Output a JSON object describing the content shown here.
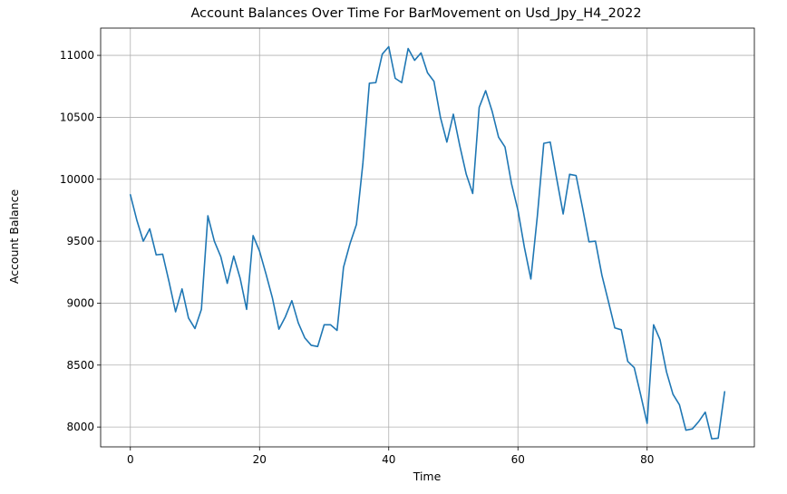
{
  "chart_data": {
    "type": "line",
    "title": "Account Balances Over Time For BarMovement on Usd_Jpy_H4_2022",
    "xlabel": "Time",
    "ylabel": "Account Balance",
    "xlim": [
      -4.6,
      96.6
    ],
    "ylim": [
      7840,
      11220
    ],
    "xticks": [
      0,
      20,
      40,
      60,
      80
    ],
    "yticks": [
      8000,
      8500,
      9000,
      9500,
      10000,
      10500,
      11000
    ],
    "grid": true,
    "line_color": "#1f77b4",
    "series": [
      {
        "x": [
          0,
          1,
          2,
          3,
          4,
          5,
          6,
          7,
          8,
          9,
          10,
          11,
          12,
          13,
          14,
          15,
          16,
          17,
          18,
          19,
          20,
          21,
          22,
          23,
          24,
          25,
          26,
          27,
          28,
          29,
          30,
          31,
          32,
          33,
          34,
          35,
          36,
          37,
          38,
          39,
          40,
          41,
          42,
          43,
          44,
          45,
          46,
          47,
          48,
          49,
          50,
          51,
          52,
          53,
          54,
          55,
          56,
          57,
          58,
          59,
          60,
          61,
          62,
          63,
          64,
          65,
          66,
          67,
          68,
          69,
          70,
          71,
          72,
          73,
          74,
          75,
          76,
          77,
          78,
          79,
          80,
          81,
          82,
          83,
          84,
          85,
          86,
          87,
          88,
          89,
          90,
          91,
          92
        ],
        "values": [
          9875,
          9670,
          9500,
          9600,
          9390,
          9395,
          9170,
          8930,
          9115,
          8880,
          8795,
          8950,
          9705,
          9500,
          9375,
          9160,
          9380,
          9200,
          8950,
          9545,
          9420,
          9235,
          9040,
          8790,
          8890,
          9020,
          8840,
          8720,
          8660,
          8650,
          8825,
          8825,
          8780,
          9290,
          9480,
          9635,
          10130,
          10775,
          10780,
          11010,
          11070,
          10815,
          10780,
          11055,
          10960,
          11020,
          10860,
          10790,
          10500,
          10300,
          10525,
          10270,
          10040,
          9885,
          10580,
          10715,
          10550,
          10340,
          10260,
          9965,
          9750,
          9450,
          9195,
          9700,
          10290,
          10300,
          10005,
          9720,
          10040,
          10030,
          9770,
          9495,
          9500,
          9225,
          9015,
          8800,
          8785,
          8530,
          8480,
          8260,
          8030,
          8825,
          8705,
          8445,
          8265,
          8180,
          7975,
          7985,
          8045,
          8120,
          7905,
          7910,
          8285
        ]
      }
    ]
  }
}
